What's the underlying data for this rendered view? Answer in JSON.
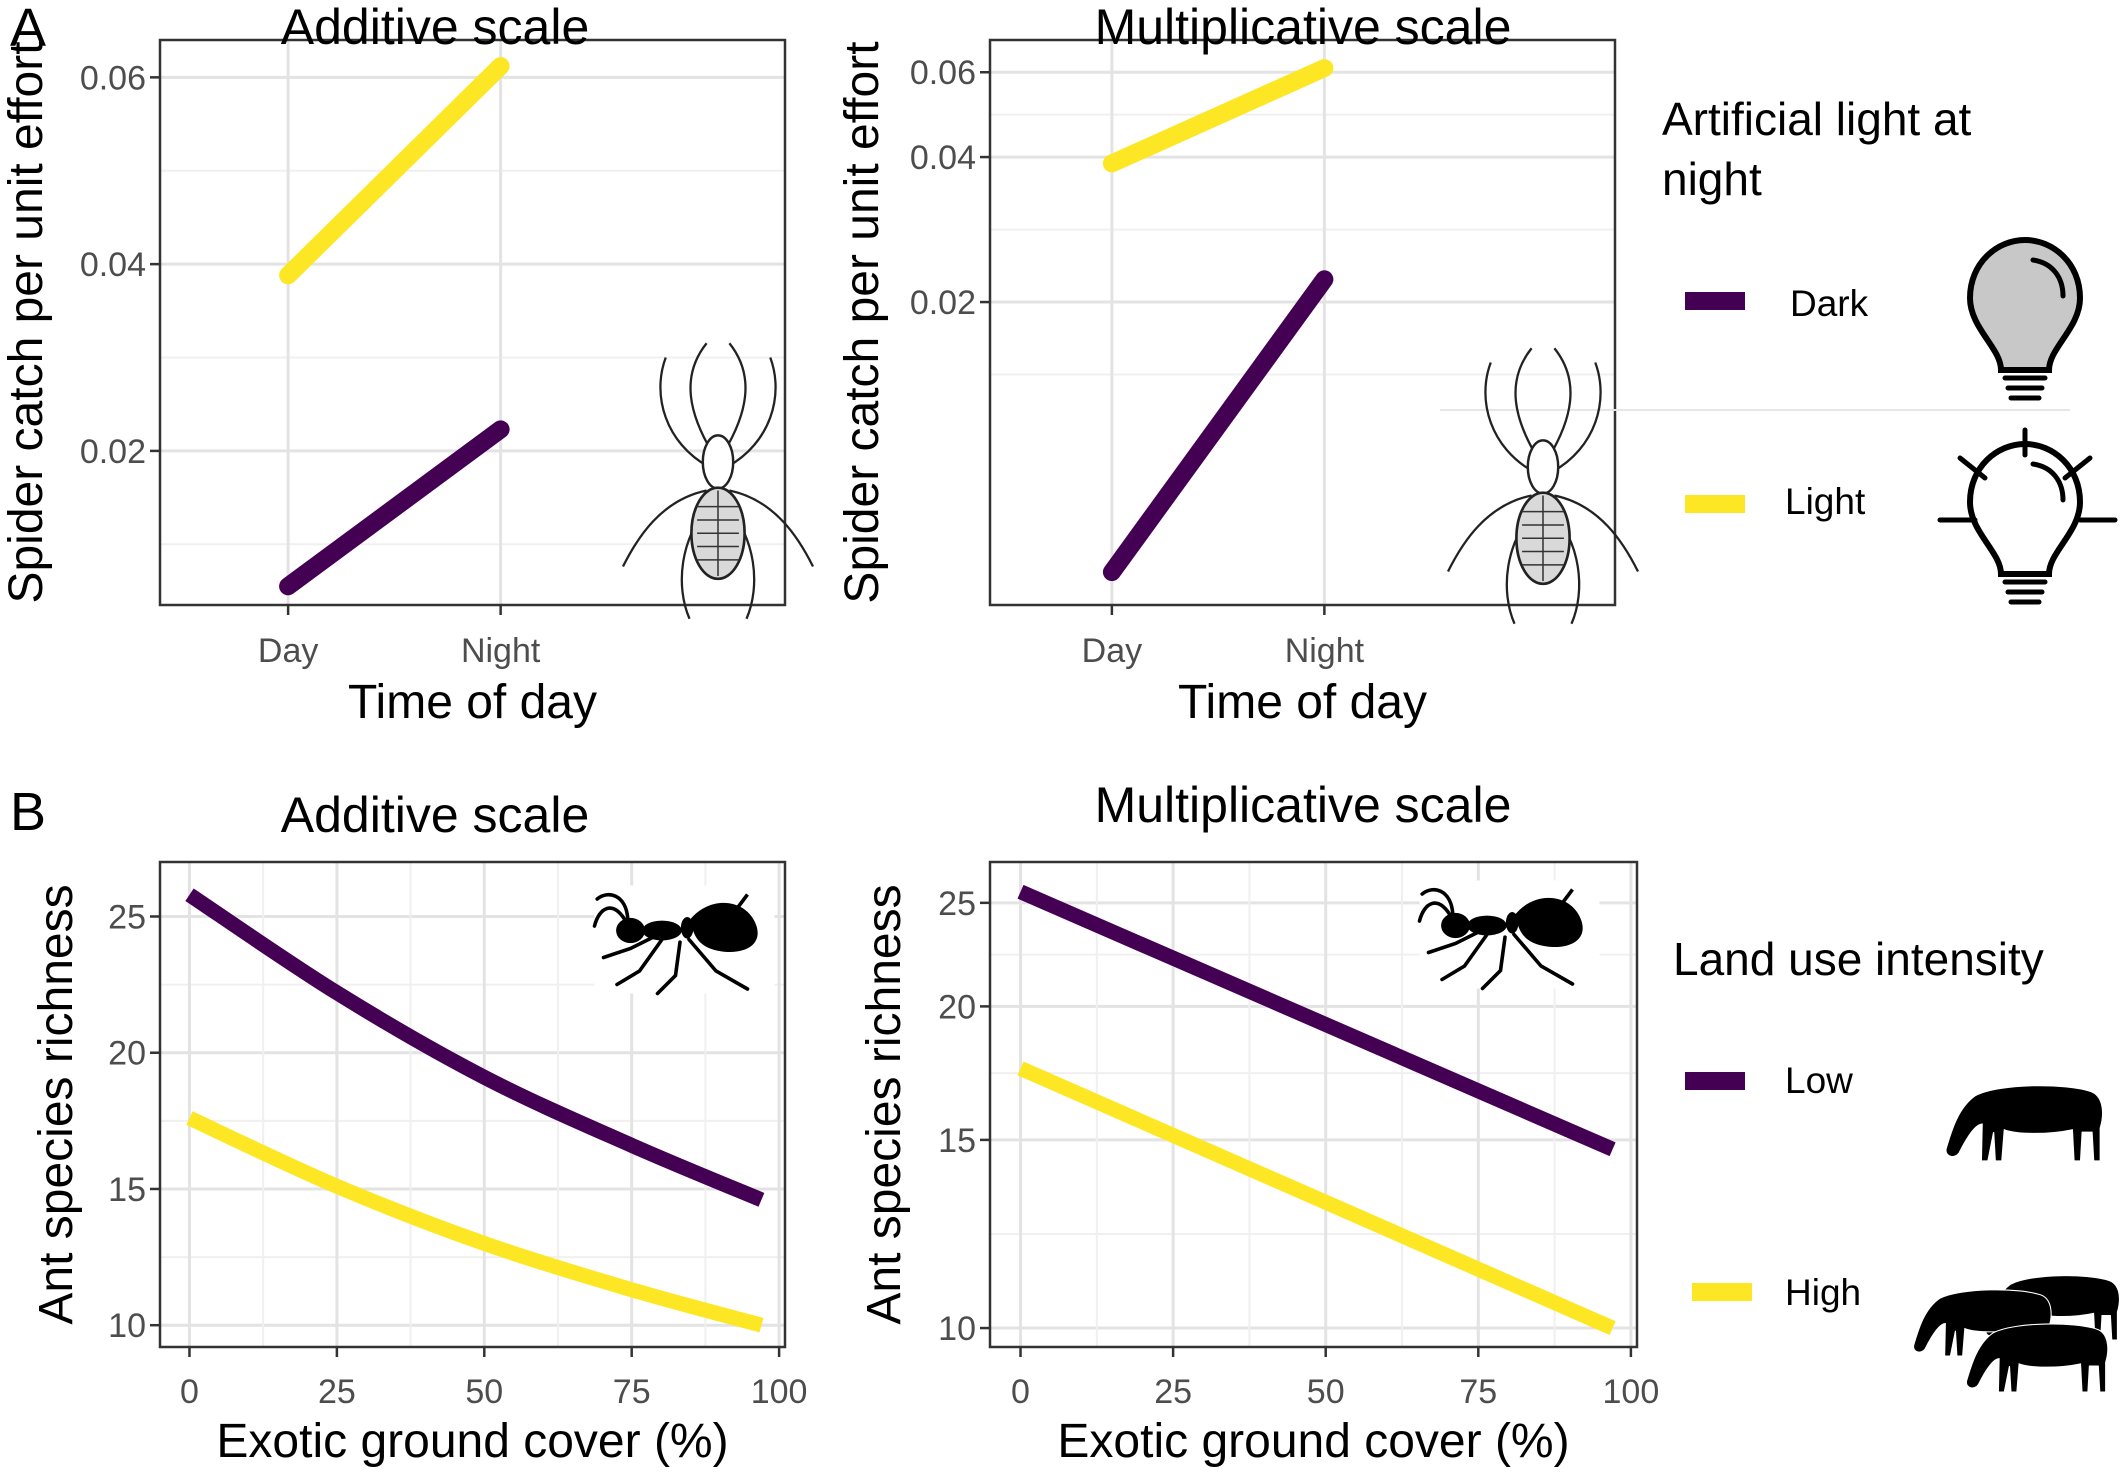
{
  "panels": {
    "A": {
      "letter": "A"
    },
    "B": {
      "letter": "B"
    }
  },
  "legend_light": {
    "title_line1": "Artificial light at",
    "title_line2": "night",
    "items": [
      {
        "label": "Dark",
        "color": "#440154"
      },
      {
        "label": "Light",
        "color": "#FDE725"
      }
    ]
  },
  "legend_land": {
    "title": "Land use intensity",
    "items": [
      {
        "label": "Low",
        "color": "#440154"
      },
      {
        "label": "High",
        "color": "#FDE725"
      }
    ]
  },
  "chart_data": [
    {
      "type": "line",
      "title": "Additive scale",
      "xlabel": "Time of day",
      "ylabel": "Spider catch per unit effort",
      "x": [
        "Day",
        "Night"
      ],
      "yscale": "linear",
      "ylim": [
        0.0035,
        0.064
      ],
      "yticks": [
        0.02,
        0.04,
        0.06
      ],
      "ytick_labels": [
        "0.02",
        "0.04",
        "0.06"
      ],
      "grid": true,
      "series": [
        {
          "name": "Dark",
          "values": [
            0.0055,
            0.0223
          ]
        },
        {
          "name": "Light",
          "values": [
            0.0388,
            0.0612
          ]
        }
      ]
    },
    {
      "type": "line",
      "title": "Multiplicative scale",
      "xlabel": "Time of day",
      "ylabel": "Spider catch per unit effort",
      "x": [
        "Day",
        "Night"
      ],
      "yscale": "log",
      "ylim": [
        0.0047,
        0.07
      ],
      "yticks": [
        0.02,
        0.04,
        0.06
      ],
      "ytick_labels": [
        "0.02",
        "0.04",
        "0.06"
      ],
      "grid": true,
      "series": [
        {
          "name": "Dark",
          "values": [
            0.0055,
            0.0223
          ]
        },
        {
          "name": "Light",
          "values": [
            0.0388,
            0.0612
          ]
        }
      ]
    },
    {
      "type": "line",
      "title": "Additive scale",
      "xlabel": "Exotic ground cover (%)",
      "ylabel": "Ant species richness",
      "yscale": "linear",
      "xlim": [
        -5,
        101
      ],
      "ylim": [
        9.2,
        27.0
      ],
      "xticks": [
        0,
        25,
        50,
        75,
        100
      ],
      "yticks": [
        10,
        15,
        20,
        25
      ],
      "grid": true,
      "series": [
        {
          "name": "Low",
          "x": [
            0,
            25,
            50,
            75,
            97
          ],
          "values": [
            25.8,
            22.2,
            19.1,
            16.6,
            14.6
          ]
        },
        {
          "name": "High",
          "x": [
            0,
            25,
            50,
            75,
            97
          ],
          "values": [
            17.6,
            15.1,
            13.0,
            11.3,
            10.0
          ]
        }
      ]
    },
    {
      "type": "line",
      "title": "Multiplicative scale",
      "xlabel": "Exotic ground cover (%)",
      "ylabel": "Ant species richness",
      "yscale": "log",
      "xlim": [
        -5,
        101
      ],
      "ylim": [
        9.6,
        27.3
      ],
      "xticks": [
        0,
        25,
        50,
        75,
        100
      ],
      "yticks": [
        10,
        15,
        20,
        25
      ],
      "grid": true,
      "series": [
        {
          "name": "Low",
          "x": [
            0,
            97
          ],
          "values": [
            25.6,
            14.7
          ]
        },
        {
          "name": "High",
          "x": [
            0,
            97
          ],
          "values": [
            17.5,
            10.0
          ]
        }
      ]
    }
  ]
}
